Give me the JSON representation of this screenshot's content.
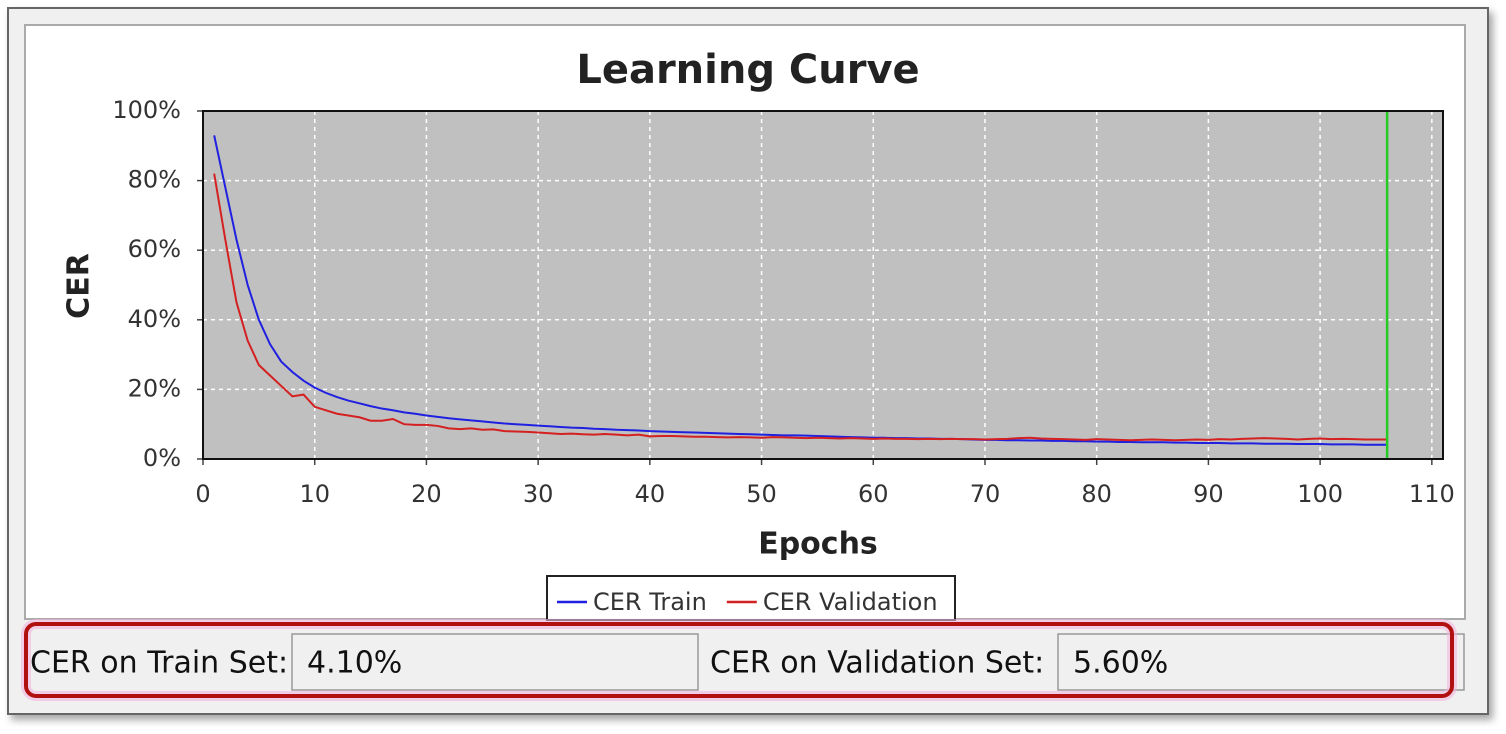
{
  "chart_data": {
    "type": "line",
    "title": "Learning Curve",
    "x_label": "Epochs",
    "y_label": "CER",
    "x": [
      1,
      2,
      3,
      4,
      5,
      6,
      7,
      8,
      9,
      10,
      11,
      12,
      13,
      14,
      15,
      16,
      17,
      18,
      19,
      20,
      21,
      22,
      23,
      24,
      25,
      26,
      27,
      28,
      29,
      30,
      31,
      32,
      33,
      34,
      35,
      36,
      37,
      38,
      39,
      40,
      41,
      42,
      43,
      44,
      45,
      46,
      47,
      48,
      49,
      50,
      51,
      52,
      53,
      54,
      55,
      56,
      57,
      58,
      59,
      60,
      61,
      62,
      63,
      64,
      65,
      66,
      67,
      68,
      69,
      70,
      71,
      72,
      73,
      74,
      75,
      76,
      77,
      78,
      79,
      80,
      81,
      82,
      83,
      84,
      85,
      86,
      87,
      88,
      89,
      90,
      91,
      92,
      93,
      94,
      95,
      96,
      97,
      98,
      99,
      100,
      101,
      102,
      103,
      104,
      105,
      106
    ],
    "series": [
      {
        "name": "CER Train",
        "color": "#2020e0",
        "values": [
          93,
          78,
          63,
          50,
          40,
          33,
          28,
          25,
          22.5,
          20.5,
          19,
          17.8,
          16.8,
          16,
          15.2,
          14.5,
          14,
          13.4,
          13,
          12.5,
          12.1,
          11.7,
          11.4,
          11.1,
          10.8,
          10.5,
          10.2,
          10,
          9.8,
          9.6,
          9.4,
          9.2,
          9,
          8.9,
          8.7,
          8.6,
          8.4,
          8.3,
          8.2,
          8,
          7.9,
          7.8,
          7.7,
          7.6,
          7.5,
          7.4,
          7.3,
          7.2,
          7.1,
          7,
          6.9,
          6.8,
          6.8,
          6.7,
          6.6,
          6.5,
          6.4,
          6.3,
          6.2,
          6.1,
          6.1,
          6,
          6,
          5.9,
          5.9,
          5.8,
          5.8,
          5.7,
          5.6,
          5.5,
          5.5,
          5.4,
          5.4,
          5.3,
          5.3,
          5.2,
          5.2,
          5.1,
          5.1,
          5,
          5,
          4.9,
          4.9,
          4.8,
          4.8,
          4.8,
          4.7,
          4.7,
          4.6,
          4.6,
          4.6,
          4.5,
          4.5,
          4.5,
          4.4,
          4.4,
          4.4,
          4.3,
          4.3,
          4.3,
          4.2,
          4.2,
          4.2,
          4.1,
          4.1,
          4.1
        ]
      },
      {
        "name": "CER Validation",
        "color": "#d42020",
        "values": [
          82,
          63,
          45,
          34,
          27,
          24,
          21,
          18,
          18.5,
          15,
          14,
          13,
          12.5,
          12,
          11,
          11,
          11.5,
          10,
          9.8,
          9.8,
          9.5,
          8.8,
          8.6,
          8.8,
          8.4,
          8.5,
          8,
          7.9,
          7.8,
          7.6,
          7.4,
          7.2,
          7.3,
          7.1,
          7,
          7.2,
          7,
          6.8,
          7,
          6.5,
          6.6,
          6.6,
          6.5,
          6.4,
          6.4,
          6.3,
          6.2,
          6.3,
          6.2,
          6.1,
          6.3,
          6.2,
          6.1,
          6,
          6.1,
          6,
          5.9,
          6,
          5.9,
          5.8,
          5.9,
          5.8,
          5.8,
          5.7,
          5.8,
          5.7,
          5.8,
          5.7,
          5.7,
          5.6,
          5.7,
          5.8,
          6,
          6.1,
          5.9,
          5.8,
          5.7,
          5.6,
          5.5,
          5.7,
          5.6,
          5.5,
          5.4,
          5.5,
          5.6,
          5.5,
          5.4,
          5.5,
          5.6,
          5.5,
          5.7,
          5.6,
          5.8,
          5.9,
          6,
          5.9,
          5.8,
          5.6,
          5.8,
          5.9,
          5.7,
          5.8,
          5.7,
          5.6,
          5.6,
          5.6
        ]
      }
    ],
    "xlim": [
      0,
      111
    ],
    "xticks": [
      0,
      10,
      20,
      30,
      40,
      50,
      60,
      70,
      80,
      90,
      100,
      110
    ],
    "ylim": [
      0,
      100
    ],
    "yticks": [
      {
        "value": 0,
        "label": "0%"
      },
      {
        "value": 20,
        "label": "20%"
      },
      {
        "value": 40,
        "label": "40%"
      },
      {
        "value": 60,
        "label": "60%"
      },
      {
        "value": 80,
        "label": "80%"
      },
      {
        "value": 100,
        "label": "100%"
      }
    ],
    "grid": true,
    "background": "#c0c0c0",
    "marker": {
      "x": 106,
      "color": "#22cc22"
    }
  },
  "stats": {
    "train_label": "CER on Train Set:",
    "train_value": "4.10%",
    "validation_label": "CER on Validation Set:",
    "validation_value": "5.60%"
  }
}
